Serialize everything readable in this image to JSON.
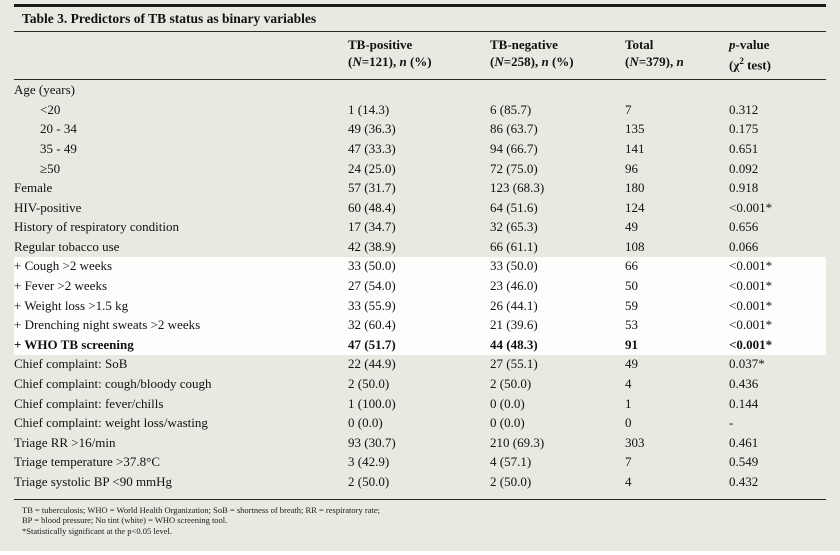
{
  "title": "Table 3. Predictors of TB status as binary variables",
  "columns": [
    {
      "title": [
        {
          "t": "TB-positive"
        }
      ],
      "sub": [
        {
          "t": "("
        },
        {
          "t": "N",
          "i": true
        },
        {
          "t": "=121), "
        },
        {
          "t": "n",
          "i": true
        },
        {
          "t": " (%)"
        }
      ]
    },
    {
      "title": [
        {
          "t": "TB-negative"
        }
      ],
      "sub": [
        {
          "t": "("
        },
        {
          "t": "N",
          "i": true
        },
        {
          "t": "=258), "
        },
        {
          "t": "n",
          "i": true
        },
        {
          "t": " (%)"
        }
      ]
    },
    {
      "title": [
        {
          "t": "Total"
        }
      ],
      "sub": [
        {
          "t": "("
        },
        {
          "t": "N",
          "i": true
        },
        {
          "t": "=379), "
        },
        {
          "t": "n",
          "i": true
        }
      ]
    },
    {
      "title": [
        {
          "t": "p",
          "i": true
        },
        {
          "t": "-value"
        }
      ],
      "sub": [
        {
          "t": "(χ"
        },
        {
          "t": "2",
          "sup": true
        },
        {
          "t": " test)"
        }
      ]
    }
  ],
  "rows": [
    {
      "label": "Age (years)",
      "indent": false,
      "highlight": false,
      "bold": false,
      "cells": [
        "",
        "",
        "",
        ""
      ]
    },
    {
      "label": "<20",
      "indent": true,
      "highlight": false,
      "bold": false,
      "cells": [
        "1 (14.3)",
        "6 (85.7)",
        "7",
        "0.312"
      ]
    },
    {
      "label": "20 - 34",
      "indent": true,
      "highlight": false,
      "bold": false,
      "cells": [
        "49 (36.3)",
        "86 (63.7)",
        "135",
        "0.175"
      ]
    },
    {
      "label": "35 - 49",
      "indent": true,
      "highlight": false,
      "bold": false,
      "cells": [
        "47 (33.3)",
        "94 (66.7)",
        "141",
        "0.651"
      ]
    },
    {
      "label": "≥50",
      "indent": true,
      "highlight": false,
      "bold": false,
      "cells": [
        "24 (25.0)",
        "72 (75.0)",
        "96",
        "0.092"
      ]
    },
    {
      "label": "Female",
      "indent": false,
      "highlight": false,
      "bold": false,
      "cells": [
        "57 (31.7)",
        "123 (68.3)",
        "180",
        "0.918"
      ]
    },
    {
      "label": "HIV-positive",
      "indent": false,
      "highlight": false,
      "bold": false,
      "cells": [
        "60 (48.4)",
        "64 (51.6)",
        "124",
        "<0.001*"
      ]
    },
    {
      "label": "History of respiratory condition",
      "indent": false,
      "highlight": false,
      "bold": false,
      "cells": [
        "17 (34.7)",
        "32 (65.3)",
        "49",
        "0.656"
      ]
    },
    {
      "label": "Regular tobacco use",
      "indent": false,
      "highlight": false,
      "bold": false,
      "cells": [
        "42 (38.9)",
        "66 (61.1)",
        "108",
        "0.066"
      ]
    },
    {
      "label": "+ Cough >2 weeks",
      "indent": false,
      "highlight": true,
      "bold": false,
      "cells": [
        "33 (50.0)",
        "33 (50.0)",
        "66",
        "<0.001*"
      ]
    },
    {
      "label": "+ Fever >2 weeks",
      "indent": false,
      "highlight": true,
      "bold": false,
      "cells": [
        "27 (54.0)",
        "23 (46.0)",
        "50",
        "<0.001*"
      ]
    },
    {
      "label": "+ Weight loss >1.5 kg",
      "indent": false,
      "highlight": true,
      "bold": false,
      "cells": [
        "33 (55.9)",
        "26 (44.1)",
        "59",
        "<0.001*"
      ]
    },
    {
      "label": "+ Drenching night sweats >2 weeks",
      "indent": false,
      "highlight": true,
      "bold": false,
      "cells": [
        "32 (60.4)",
        "21 (39.6)",
        "53",
        "<0.001*"
      ]
    },
    {
      "label": "+ WHO TB screening",
      "indent": false,
      "highlight": true,
      "bold": true,
      "cells": [
        "47 (51.7)",
        "44 (48.3)",
        "91",
        "<0.001*"
      ]
    },
    {
      "label": "Chief complaint: SoB",
      "indent": false,
      "highlight": false,
      "bold": false,
      "cells": [
        "22 (44.9)",
        "27 (55.1)",
        "49",
        "0.037*"
      ]
    },
    {
      "label": "Chief complaint: cough/bloody cough",
      "indent": false,
      "highlight": false,
      "bold": false,
      "cells": [
        "2 (50.0)",
        "2 (50.0)",
        "4",
        "0.436"
      ]
    },
    {
      "label": "Chief complaint: fever/chills",
      "indent": false,
      "highlight": false,
      "bold": false,
      "cells": [
        "1 (100.0)",
        "0 (0.0)",
        "1",
        "0.144"
      ]
    },
    {
      "label": "Chief complaint: weight loss/wasting",
      "indent": false,
      "highlight": false,
      "bold": false,
      "cells": [
        "0 (0.0)",
        "0 (0.0)",
        "0",
        "-"
      ]
    },
    {
      "label": "Triage RR >16/min",
      "indent": false,
      "highlight": false,
      "bold": false,
      "cells": [
        "93 (30.7)",
        "210 (69.3)",
        "303",
        "0.461"
      ]
    },
    {
      "label": "Triage temperature >37.8°C",
      "indent": false,
      "highlight": false,
      "bold": false,
      "cells": [
        "3 (42.9)",
        "4 (57.1)",
        "7",
        "0.549"
      ]
    },
    {
      "label": "Triage systolic BP <90 mmHg",
      "indent": false,
      "highlight": false,
      "bold": false,
      "cells": [
        "2 (50.0)",
        "2 (50.0)",
        "4",
        "0.432"
      ]
    }
  ],
  "footnotes": [
    "TB = tuberculosis; WHO = World Health Organization; SoB = shortness of breath; RR = respiratory rate;",
    "BP = blood pressure; No tint (white) = WHO screening tool.",
    "*Statistically significant at the p<0.05 level."
  ],
  "colors": {
    "sheet_background": "#e9e9e2",
    "highlight_band": "#fdfdfb",
    "rule": "#1a1a1a",
    "text": "#111111"
  }
}
